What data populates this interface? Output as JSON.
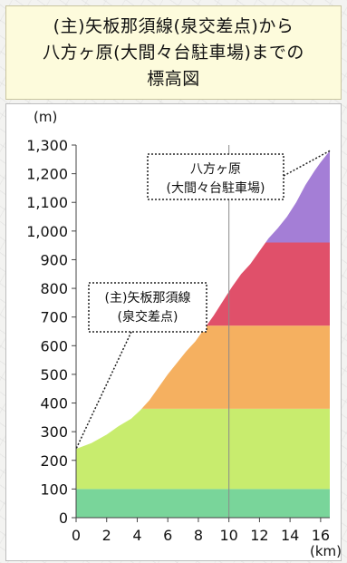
{
  "title": {
    "lines": [
      "(主)矢板那須線(泉交差点)から",
      "八方ヶ原(大間々台駐車場)までの",
      "標高図"
    ]
  },
  "chart_data": {
    "type": "area",
    "title": "(主)矢板那須線(泉交差点)から八方ヶ原(大間々台駐車場)までの標高図",
    "xlabel": "",
    "ylabel": "",
    "x_unit": "(km)",
    "y_unit": "(m)",
    "xlim": [
      0,
      16.6
    ],
    "ylim": [
      0,
      1300
    ],
    "x_ticks": [
      "0",
      "2",
      "4",
      "6",
      "8",
      "10",
      "12",
      "14",
      "16"
    ],
    "y_ticks": [
      "0",
      "100",
      "200",
      "300",
      "400",
      "500",
      "600",
      "700",
      "800",
      "900",
      "1,000",
      "1,100",
      "1,200",
      "1,300"
    ],
    "series": [
      {
        "x": [
          0,
          1.0,
          2.0,
          2.8,
          3.6,
          4.2,
          4.8,
          5.4,
          6.0,
          6.6,
          7.2,
          7.8,
          8.4,
          9.0,
          9.6,
          10.2,
          10.8,
          11.4,
          12.0,
          12.6,
          13.2,
          13.8,
          14.4,
          15.0,
          15.6,
          16.0,
          16.6
        ],
        "y": [
          240,
          260,
          290,
          320,
          345,
          375,
          410,
          455,
          500,
          540,
          580,
          615,
          660,
          705,
          755,
          805,
          850,
          885,
          930,
          975,
          1010,
          1050,
          1100,
          1160,
          1210,
          1240,
          1280
        ]
      }
    ],
    "color_bands": [
      {
        "from": 0,
        "to": 100,
        "color": "#79d59a"
      },
      {
        "from": 100,
        "to": 380,
        "color": "#c8ec6e"
      },
      {
        "from": 380,
        "to": 670,
        "color": "#f5b060"
      },
      {
        "from": 670,
        "to": 960,
        "color": "#e0506a"
      },
      {
        "from": 960,
        "to": 1300,
        "color": "#a47ed6"
      }
    ],
    "grid": {
      "vertical_line_at_x": 10
    },
    "annotations": [
      {
        "lines": [
          "(主)矢板那須線",
          "(泉交差点)"
        ],
        "points_to": [
          0,
          240
        ]
      },
      {
        "lines": [
          "八方ヶ原",
          "(大間々台駐車場)"
        ],
        "points_to": [
          16.6,
          1280
        ]
      }
    ]
  }
}
